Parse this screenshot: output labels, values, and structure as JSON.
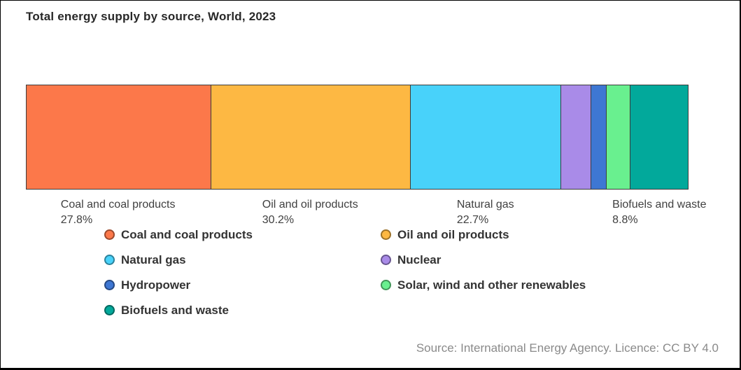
{
  "header": {
    "title": "Total energy supply by source, World, 2023"
  },
  "footer": {
    "source_text": "Source: International Energy Agency. Licence: CC BY 4.0"
  },
  "chart_data": {
    "type": "bar",
    "variant": "single-stacked-horizontal-bar",
    "title": "Total energy supply by source, World, 2023",
    "unit": "% of total energy supply",
    "grid": false,
    "axis_labels": [],
    "segments": [
      {
        "label": "Coal and coal products",
        "value": 27.8,
        "pct_label": "27.8%",
        "color": "#FC784A",
        "annotated": true
      },
      {
        "label": "Oil and oil products",
        "value": 30.2,
        "pct_label": "30.2%",
        "color": "#FDB843",
        "annotated": true
      },
      {
        "label": "Natural gas",
        "value": 22.7,
        "pct_label": "22.7%",
        "color": "#48D2FA",
        "annotated": true
      },
      {
        "label": "Nuclear",
        "value": 4.6,
        "pct_label": "",
        "color": "#A98BE8",
        "annotated": false
      },
      {
        "label": "Hydropower",
        "value": 2.3,
        "pct_label": "",
        "color": "#3E77D3",
        "annotated": false
      },
      {
        "label": "Solar, wind and other renewables",
        "value": 3.6,
        "pct_label": "",
        "color": "#69F08F",
        "annotated": false
      },
      {
        "label": "Biofuels and waste",
        "value": 8.8,
        "pct_label": "8.8%",
        "color": "#02A99B",
        "annotated": true
      }
    ],
    "legend": {
      "position": "below-chart",
      "columns": [
        [
          "Coal and coal products",
          "Natural gas",
          "Hydropower",
          "Biofuels and waste"
        ],
        [
          "Oil and oil products",
          "Nuclear",
          "Solar, wind and other renewables"
        ]
      ]
    }
  }
}
